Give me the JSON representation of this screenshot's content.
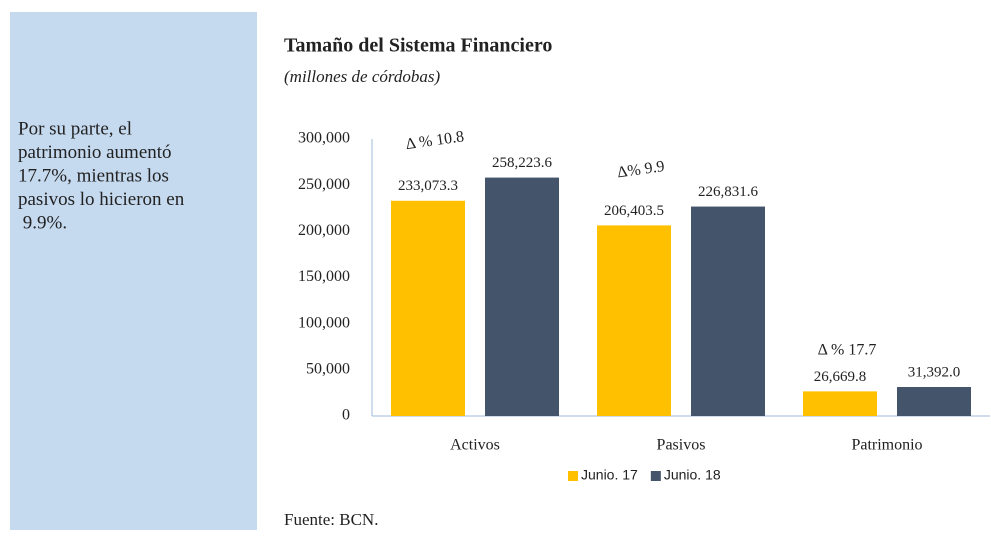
{
  "sidebar": {
    "lines": [
      "Por su parte, el",
      "patrimonio aumentó",
      "17.7%, mientras los",
      "pasivos lo hicieron en",
      " 9.9%."
    ]
  },
  "chart_data": {
    "type": "bar",
    "title": "Tamaño del Sistema Financiero",
    "subtitle": "(millones de córdobas)",
    "categories": [
      "Activos",
      "Pasivos",
      "Patrimonio"
    ],
    "series": [
      {
        "name": "Junio. 17",
        "color": "#ffc000",
        "values": [
          233073.3,
          206403.5,
          26669.8
        ],
        "value_labels": [
          "233,073.3",
          "206,403.5",
          "26,669.8"
        ]
      },
      {
        "name": "Junio. 18",
        "color": "#44546a",
        "values": [
          258223.6,
          226831.6,
          31392.0
        ],
        "value_labels": [
          "258,223.6",
          "226,831.6",
          "31,392.0"
        ]
      }
    ],
    "annotations": [
      "Δ % 10.8",
      "Δ% 9.9",
      "Δ % 17.7"
    ],
    "ylim": [
      0,
      300000
    ],
    "yticks": [
      0,
      {
        "value": 50000,
        "label": "50,000"
      },
      {
        "value": 100000,
        "label": "100,000"
      },
      {
        "value": 150000,
        "label": "150,000"
      },
      {
        "value": 200000,
        "label": "200,000"
      },
      {
        "value": 250000,
        "label": "250,000"
      },
      {
        "value": 300000,
        "label": "300,000"
      }
    ],
    "grid": false,
    "legend": "bottom"
  },
  "source": "Fuente: BCN."
}
